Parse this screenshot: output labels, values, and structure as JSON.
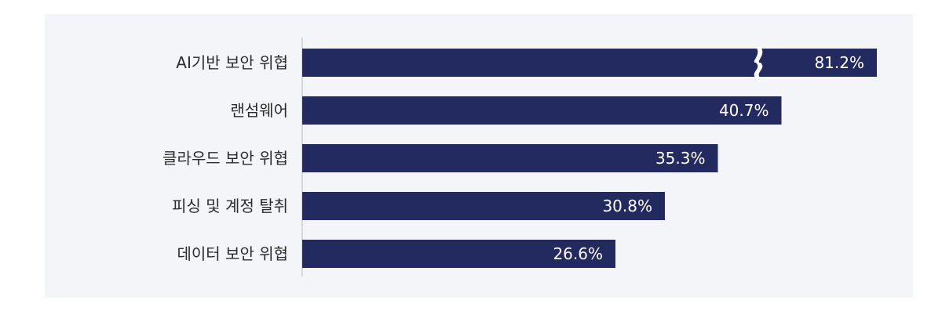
{
  "chart_data": {
    "type": "bar",
    "orientation": "horizontal",
    "categories": [
      "AI기반 보안 위협",
      "랜섬웨어",
      "클라우드 보안 위협",
      "피싱 및 계정 탈취",
      "데이터 보안 위협"
    ],
    "values": [
      81.2,
      40.7,
      35.3,
      30.8,
      26.6
    ],
    "value_labels": [
      "81.2%",
      "40.7%",
      "35.3%",
      "30.8%",
      "26.6%"
    ],
    "axis_break_on_first_bar": true,
    "bar_color": "#232a60",
    "background_color": "#f4f5f8",
    "grid": false,
    "legend": "none"
  }
}
